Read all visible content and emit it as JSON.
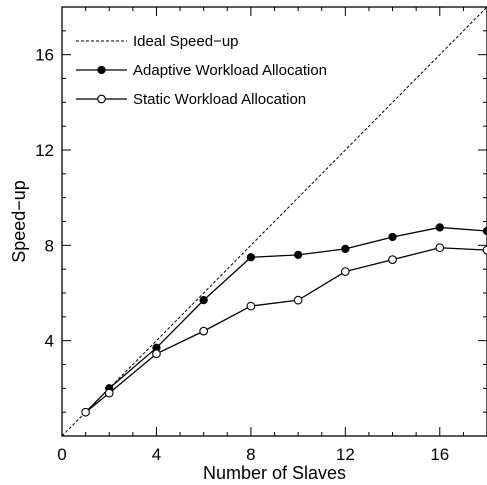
{
  "chart_data": {
    "type": "line",
    "xlabel": "Number of Slaves",
    "ylabel": "Speed−up",
    "xlim": [
      0,
      18
    ],
    "ylim": [
      0,
      18
    ],
    "x_ticks": [
      0,
      4,
      8,
      12,
      16
    ],
    "y_ticks": [
      4,
      8,
      12,
      16
    ],
    "x_tick_labels": [
      "0",
      "4",
      "8",
      "12",
      "16"
    ],
    "y_tick_labels": [
      "4",
      "8",
      "12",
      "16"
    ],
    "legend_position": "top-left",
    "grid": false,
    "series": [
      {
        "name": "Ideal Speed−up",
        "style": "dotted",
        "marker": "none",
        "x": [
          0,
          18
        ],
        "y": [
          0,
          18
        ]
      },
      {
        "name": "Adaptive Workload Allocation",
        "style": "solid",
        "marker": "filled-circle",
        "x": [
          1,
          2,
          4,
          6,
          8,
          10,
          12,
          14,
          16,
          18
        ],
        "y": [
          1.0,
          2.0,
          3.7,
          5.7,
          7.5,
          7.6,
          7.85,
          8.35,
          8.75,
          8.6
        ]
      },
      {
        "name": "Static Workload Allocation",
        "style": "solid",
        "marker": "open-circle",
        "x": [
          1,
          2,
          4,
          6,
          8,
          10,
          12,
          14,
          16,
          18
        ],
        "y": [
          1.0,
          1.8,
          3.45,
          4.4,
          5.45,
          5.7,
          6.9,
          7.4,
          7.9,
          7.8
        ]
      }
    ]
  }
}
